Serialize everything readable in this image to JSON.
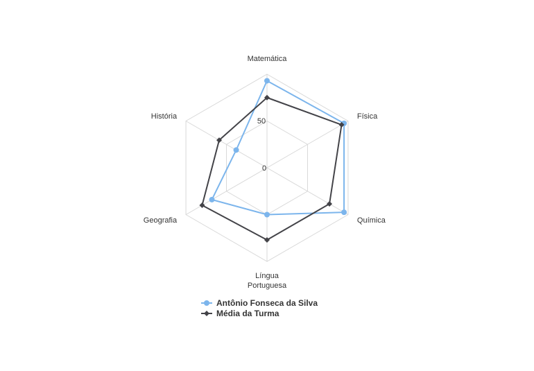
{
  "chart_data": {
    "type": "radar",
    "categories": [
      "Matemática",
      "Física",
      "Química",
      "Língua Portuguesa",
      "Geografia",
      "História"
    ],
    "category_lines": [
      [
        "Matemática"
      ],
      [
        "Física"
      ],
      [
        "Química"
      ],
      [
        "Língua",
        "Portuguesa"
      ],
      [
        "Geografia"
      ],
      [
        "História"
      ]
    ],
    "radial_ticks": [
      "0",
      "50"
    ],
    "rmin": 0,
    "rmax": 100,
    "grid": true,
    "legend_position": "bottom",
    "series": [
      {
        "name": "Antônio Fonseca da Silva",
        "values": [
          93,
          95,
          95,
          50,
          68,
          38
        ],
        "color": "#7cb5ec",
        "marker": "circle"
      },
      {
        "name": "Média da Turma",
        "values": [
          75,
          92,
          77,
          77,
          80,
          59
        ],
        "color": "#434348",
        "marker": "diamond"
      }
    ]
  }
}
